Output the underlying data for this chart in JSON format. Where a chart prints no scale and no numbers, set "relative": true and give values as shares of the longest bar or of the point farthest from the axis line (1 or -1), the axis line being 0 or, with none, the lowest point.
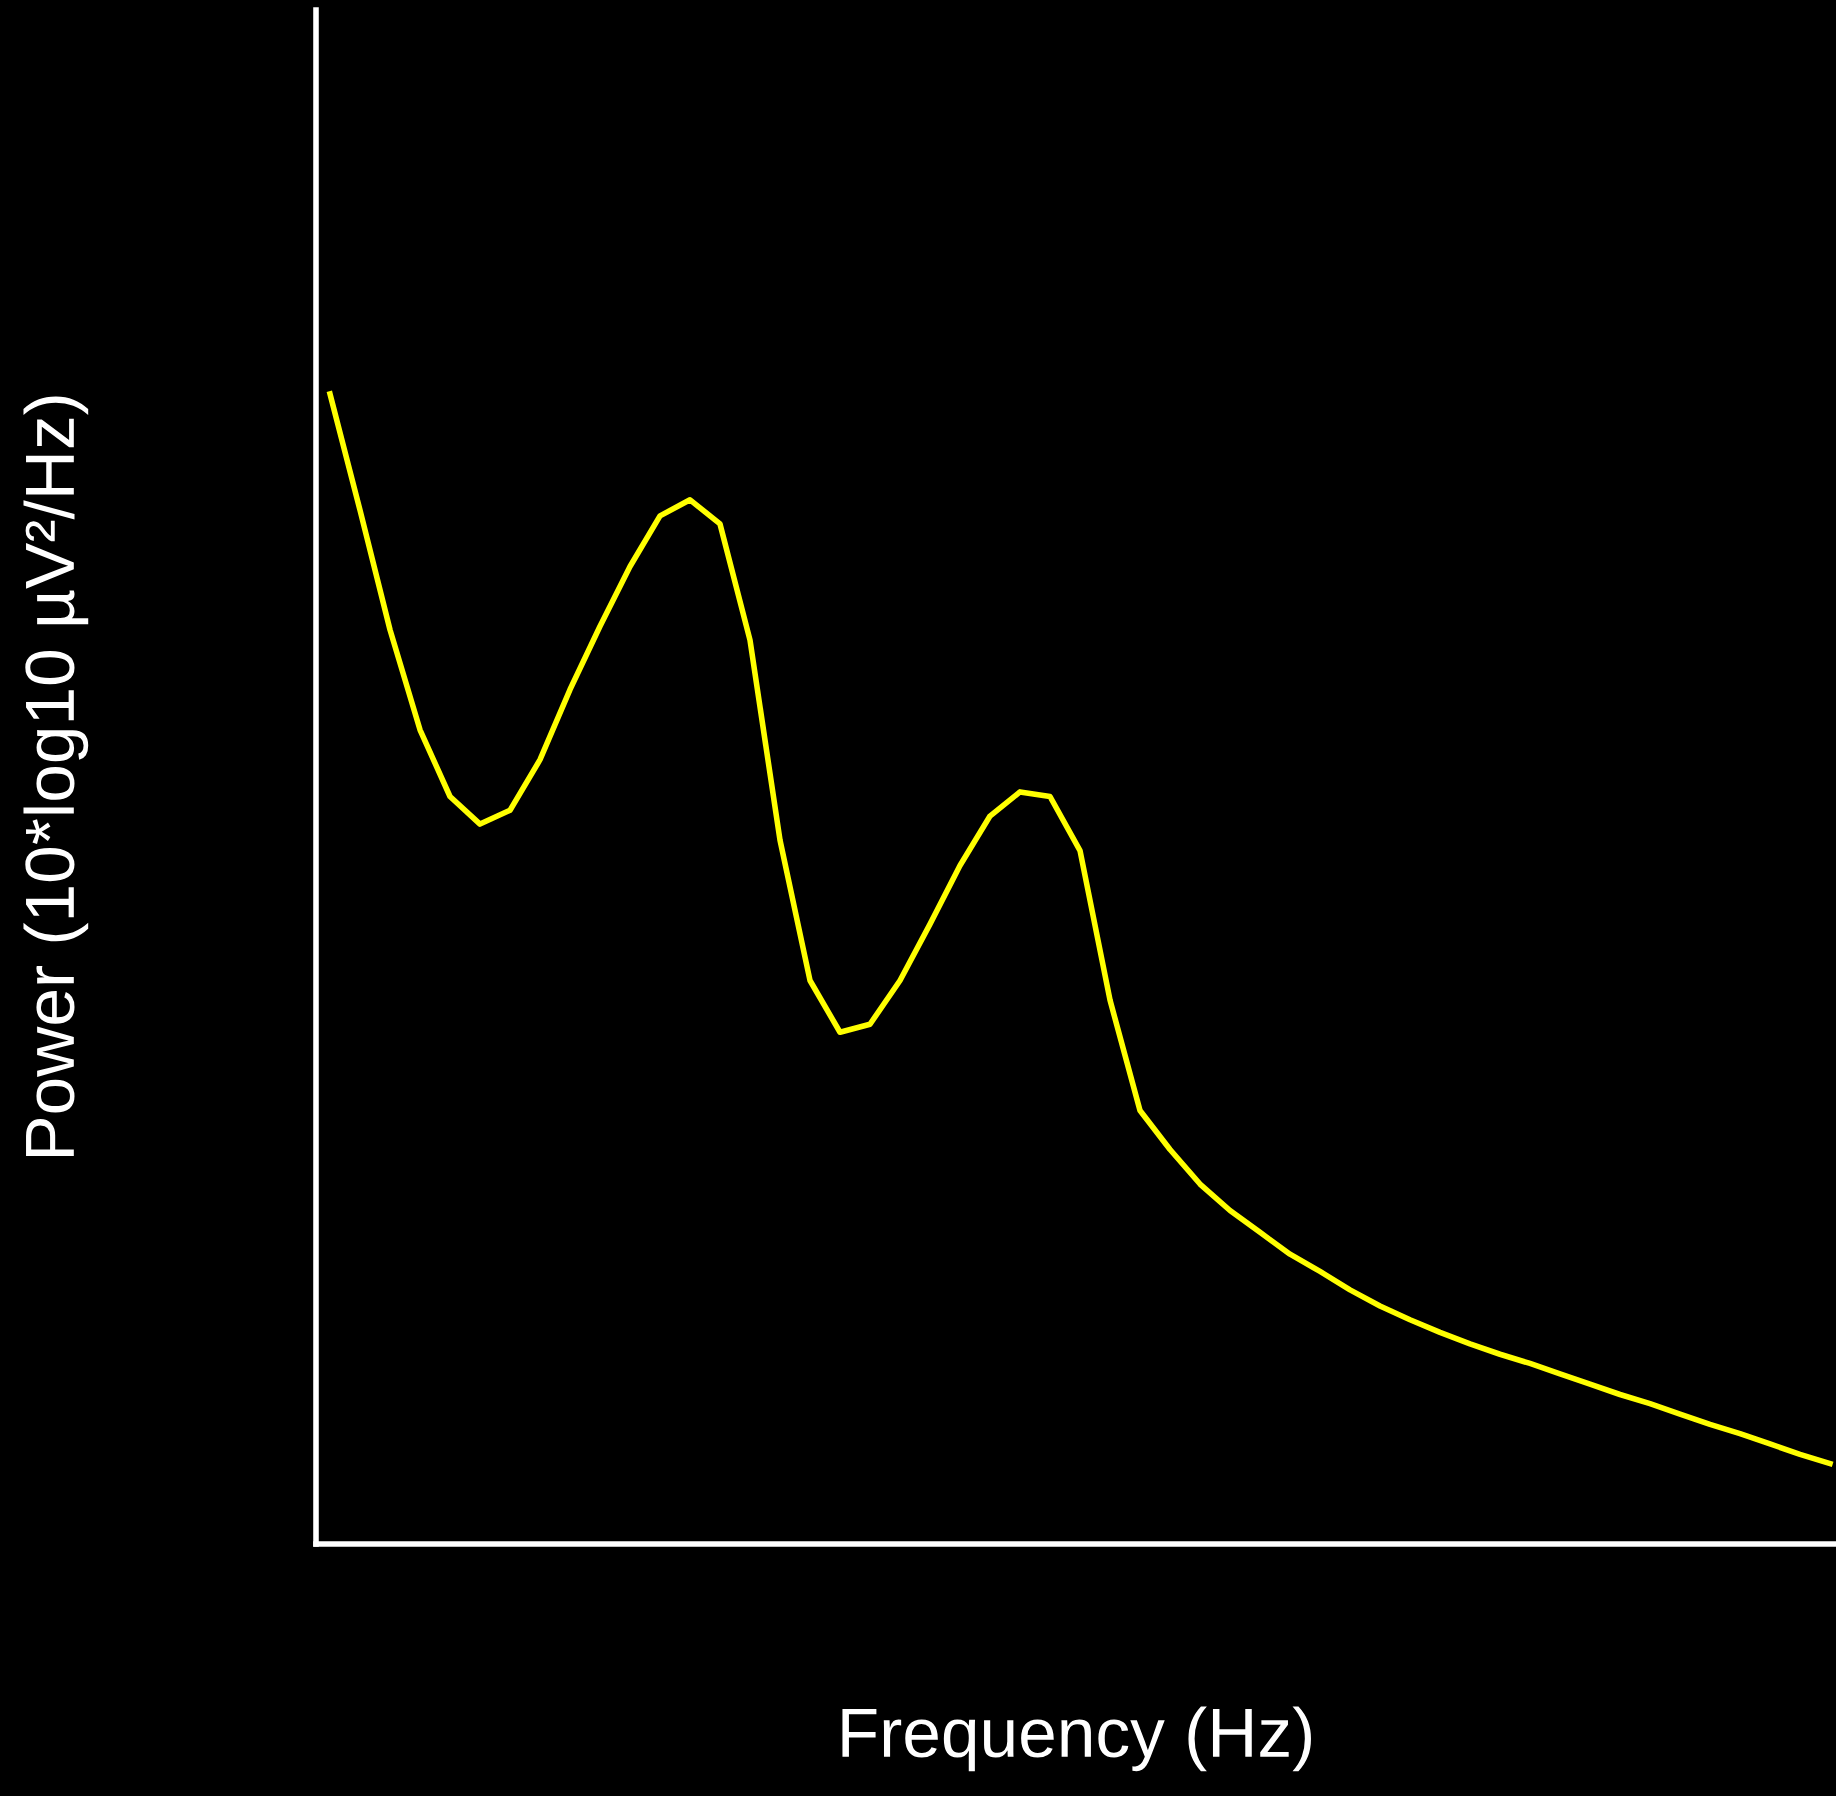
{
  "chart_data": {
    "type": "line",
    "relative": true,
    "xlabel": "Frequency (Hz)",
    "ylabel": "Power (10*log10 µV²/Hz)",
    "categories": [
      null,
      null,
      null,
      null,
      null,
      null,
      null,
      null,
      null,
      null,
      null,
      null,
      null,
      null,
      null,
      null,
      null,
      null,
      null,
      null,
      null,
      null,
      null,
      null,
      null,
      null,
      null,
      null,
      null,
      null,
      null,
      null,
      null,
      null,
      null,
      null,
      null,
      null,
      null,
      null,
      null,
      null,
      null,
      null,
      null,
      null,
      null,
      null,
      null,
      null,
      null
    ],
    "series": [
      {
        "color": "#ffff00",
        "values": [
          1.0,
          0.899,
          0.795,
          0.708,
          0.65,
          0.626,
          0.638,
          0.682,
          0.743,
          0.798,
          0.85,
          0.894,
          0.908,
          0.887,
          0.786,
          0.612,
          0.49,
          0.445,
          0.452,
          0.49,
          0.539,
          0.59,
          0.633,
          0.654,
          0.65,
          0.603,
          0.473,
          0.377,
          0.343,
          0.313,
          0.29,
          0.271,
          0.252,
          0.237,
          0.221,
          0.207,
          0.195,
          0.184,
          0.174,
          0.165,
          0.157,
          0.148,
          0.139,
          0.13,
          0.122,
          0.113,
          0.104,
          0.096,
          0.087,
          0.078,
          0.07
        ]
      }
    ],
    "grid": false,
    "legend": false,
    "marker": "none",
    "line_style": "solid"
  }
}
